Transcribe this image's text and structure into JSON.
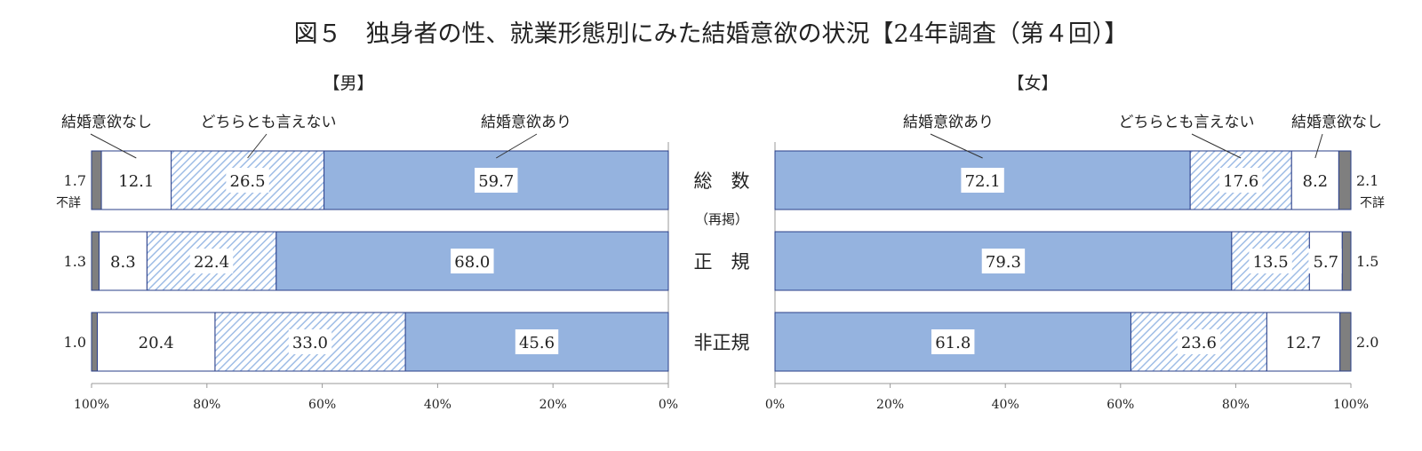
{
  "title": "図５　独身者の性、就業形態別にみた結婚意欲の状況【24年調査（第４回）】",
  "colors": {
    "yes": "#95b3df",
    "undecided_stripe": "#9fbde6",
    "no": "#ffffff",
    "unknown": "#7f7f7f",
    "outline": "#2a3f8a"
  },
  "categories": [
    {
      "label": "総　数",
      "sublabel": ""
    },
    {
      "label": "正　規",
      "sublabel": "（再掲）"
    },
    {
      "label": "非正規",
      "sublabel": ""
    }
  ],
  "chart_data": [
    {
      "type": "stacked-bar",
      "panel": "【男】",
      "orientation": "horizontal",
      "x_direction": "reversed",
      "x_ticks": [
        "100%",
        "80%",
        "60%",
        "40%",
        "20%",
        "0%"
      ],
      "series_labels": {
        "yes": "結婚意欲あり",
        "undecided": "どちらとも言えない",
        "no": "結婚意欲なし",
        "unknown": "不詳"
      },
      "rows": [
        {
          "yes": 59.7,
          "undecided": 26.5,
          "no": 12.1,
          "unknown": 1.7
        },
        {
          "yes": 68.0,
          "undecided": 22.4,
          "no": 8.3,
          "unknown": 1.3
        },
        {
          "yes": 45.6,
          "undecided": 33.0,
          "no": 20.4,
          "unknown": 1.0
        }
      ]
    },
    {
      "type": "stacked-bar",
      "panel": "【女】",
      "orientation": "horizontal",
      "x_direction": "normal",
      "x_ticks": [
        "0%",
        "20%",
        "40%",
        "60%",
        "80%",
        "100%"
      ],
      "series_labels": {
        "yes": "結婚意欲あり",
        "undecided": "どちらとも言えない",
        "no": "結婚意欲なし",
        "unknown": "不詳"
      },
      "rows": [
        {
          "yes": 72.1,
          "undecided": 17.6,
          "no": 8.2,
          "unknown": 2.1
        },
        {
          "yes": 79.3,
          "undecided": 13.5,
          "no": 5.7,
          "unknown": 1.5
        },
        {
          "yes": 61.8,
          "undecided": 23.6,
          "no": 12.7,
          "unknown": 2.0
        }
      ]
    }
  ]
}
